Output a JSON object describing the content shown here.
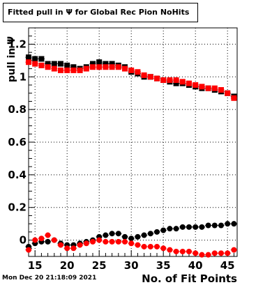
{
  "title": "Fitted pull in Ψ for Global Rec Pion NoHits",
  "footer_date": "Mon Dec 20 21:18:09 2021",
  "chart_data": {
    "type": "scatter",
    "xlabel": "No. of Fit Points",
    "ylabel": "pull in Ψ",
    "xlim": [
      14,
      46.5
    ],
    "ylim": [
      -0.1,
      1.3
    ],
    "x_ticks": [
      15,
      20,
      25,
      30,
      35,
      40,
      45
    ],
    "x_tick_labels": [
      "15",
      "20",
      "25",
      "30",
      "35",
      "40",
      "45"
    ],
    "y_ticks": [
      0,
      0.2,
      0.4,
      0.6,
      0.8,
      1.0,
      1.2
    ],
    "y_tick_labels": [
      "0",
      "0.2",
      "0.4",
      "0.6",
      "0.8",
      "1",
      "1.2"
    ],
    "grid": true,
    "x": [
      14,
      15,
      16,
      17,
      18,
      19,
      20,
      21,
      22,
      23,
      24,
      25,
      26,
      27,
      28,
      29,
      30,
      31,
      32,
      33,
      34,
      35,
      36,
      37,
      38,
      39,
      40,
      41,
      42,
      43,
      44,
      45,
      46
    ],
    "series": [
      {
        "color": "#000000",
        "marker": "square",
        "values": [
          1.12,
          1.11,
          1.11,
          1.08,
          1.08,
          1.08,
          1.07,
          1.06,
          1.05,
          1.06,
          1.08,
          1.09,
          1.08,
          1.08,
          1.07,
          1.06,
          1.03,
          1.02,
          1.0,
          1.0,
          0.99,
          0.98,
          0.97,
          0.96,
          0.96,
          0.95,
          0.94,
          0.93,
          0.93,
          0.92,
          0.91,
          0.9,
          0.88
        ]
      },
      {
        "color": "#ff0000",
        "marker": "square",
        "values": [
          1.09,
          1.08,
          1.07,
          1.06,
          1.05,
          1.04,
          1.04,
          1.04,
          1.04,
          1.05,
          1.06,
          1.06,
          1.06,
          1.06,
          1.06,
          1.05,
          1.04,
          1.03,
          1.01,
          1.0,
          0.99,
          0.98,
          0.98,
          0.98,
          0.97,
          0.96,
          0.95,
          0.94,
          0.93,
          0.93,
          0.92,
          0.9,
          0.87
        ]
      },
      {
        "color": "#000000",
        "marker": "circle",
        "values": [
          -0.04,
          -0.02,
          -0.01,
          -0.01,
          0.0,
          -0.02,
          -0.03,
          -0.03,
          -0.02,
          -0.01,
          0.0,
          0.02,
          0.03,
          0.04,
          0.04,
          0.02,
          0.01,
          0.02,
          0.03,
          0.04,
          0.05,
          0.06,
          0.07,
          0.07,
          0.08,
          0.08,
          0.08,
          0.08,
          0.09,
          0.09,
          0.09,
          0.1,
          0.1
        ]
      },
      {
        "color": "#ff0000",
        "marker": "circle",
        "values": [
          -0.06,
          0.0,
          0.01,
          0.03,
          0.0,
          -0.03,
          -0.05,
          -0.05,
          -0.03,
          -0.02,
          -0.01,
          0.0,
          -0.01,
          -0.01,
          -0.01,
          -0.01,
          -0.02,
          -0.03,
          -0.04,
          -0.04,
          -0.04,
          -0.05,
          -0.06,
          -0.07,
          -0.07,
          -0.07,
          -0.08,
          -0.09,
          -0.09,
          -0.08,
          -0.08,
          -0.08,
          -0.06
        ]
      }
    ]
  }
}
